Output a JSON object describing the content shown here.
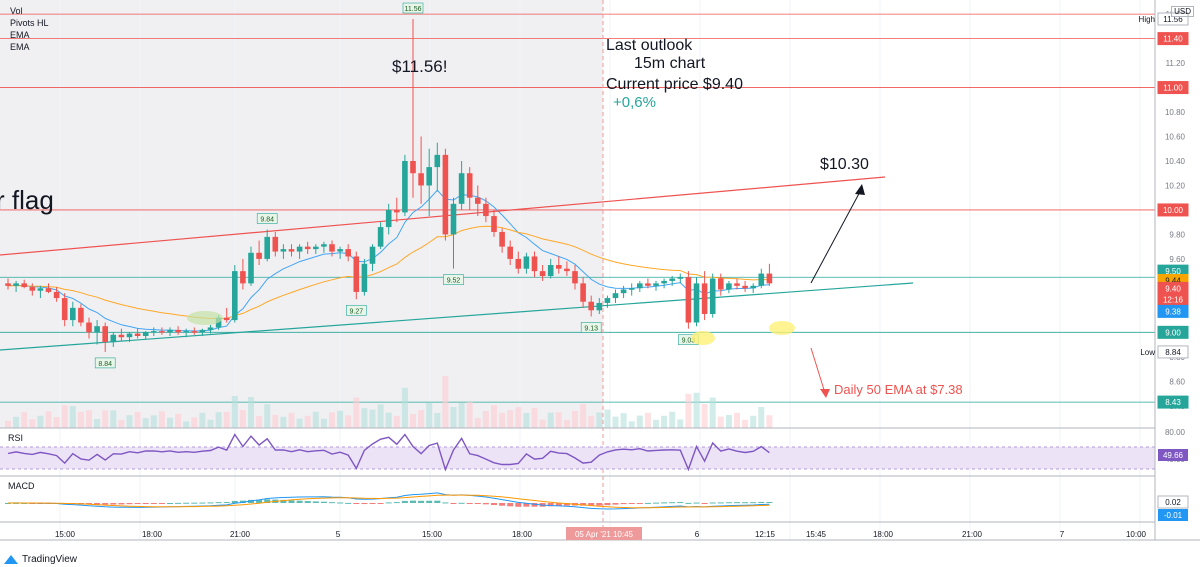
{
  "currency": "USD",
  "legend": [
    "Vol",
    "Pivots HL",
    "EMA",
    "EMA"
  ],
  "annotations": {
    "outlook": "Last outlook",
    "timeframe": "15m chart",
    "current_price": "Current price $9.40",
    "change": "+0,6%",
    "peak": "$11.56!",
    "target": "$10.30",
    "flag": "r flag",
    "ema_note": "Daily 50 EMA at $7.38"
  },
  "indicators": {
    "rsi_label": "RSI",
    "macd_label": "MACD",
    "rsi_value": "49.66",
    "macd_value_1": "0.02",
    "macd_value_2": "-0.01"
  },
  "price_axis_labels": [
    "11.60",
    "11.40",
    "11.20",
    "11.00",
    "10.80",
    "10.60",
    "10.40",
    "10.20",
    "10.00",
    "9.80",
    "9.60",
    "9.40",
    "9.20",
    "9.00",
    "8.80",
    "8.60",
    "8.40"
  ],
  "price_tags": [
    {
      "label": "11.56",
      "prefix": "High",
      "color": "#ffffff",
      "text": "#131722"
    },
    {
      "label": "11.40",
      "color": "#ef5350",
      "text": "#ffffff"
    },
    {
      "label": "11.00",
      "color": "#ef5350",
      "text": "#ffffff"
    },
    {
      "label": "10.00",
      "color": "#ef5350",
      "text": "#ffffff"
    },
    {
      "label": "9.50",
      "color": "#26a69a",
      "text": "#ffffff"
    },
    {
      "label": "9.44",
      "color": "#f7a600",
      "text": "#131722"
    },
    {
      "label": "9.40",
      "color": "#ef5350",
      "text": "#ffffff"
    },
    {
      "label": "12:16",
      "color": "#ef5350",
      "text": "#ffffff"
    },
    {
      "label": "9.38",
      "color": "#2196f3",
      "text": "#ffffff"
    },
    {
      "label": "9.00",
      "color": "#26a69a",
      "text": "#ffffff"
    },
    {
      "label": "8.84",
      "prefix": "Low",
      "color": "#ffffff",
      "text": "#131722"
    },
    {
      "label": "8.43",
      "color": "#26a69a",
      "text": "#ffffff"
    }
  ],
  "rsi_axis": [
    "80.00",
    "40.00"
  ],
  "time_axis": [
    "15:00",
    "18:00",
    "21:00",
    "5",
    "15:00",
    "18:00",
    "05 Apr '21 10:45",
    "6",
    "12:15",
    "15:45",
    "18:00",
    "21:00",
    "7",
    "10:00"
  ],
  "pivot_labels": [
    "11.56",
    "9.84",
    "9.27",
    "9.52",
    "8.84",
    "9.13",
    "9.03"
  ],
  "brand": "TradingView",
  "chart_data": {
    "type": "candlestick",
    "title": "",
    "price_range": [
      8.3,
      11.65
    ],
    "horizontal_levels": [
      11.6,
      11.4,
      11.0,
      10.0,
      9.45,
      9.0,
      8.43
    ],
    "last_price": 9.4,
    "high": 11.56,
    "low": 8.84,
    "target": 10.3,
    "candles": [
      [
        9.4,
        9.44,
        9.35,
        9.38
      ],
      [
        9.38,
        9.42,
        9.33,
        9.4
      ],
      [
        9.4,
        9.43,
        9.36,
        9.37
      ],
      [
        9.37,
        9.4,
        9.3,
        9.34
      ],
      [
        9.34,
        9.38,
        9.28,
        9.36
      ],
      [
        9.36,
        9.4,
        9.32,
        9.33
      ],
      [
        9.33,
        9.37,
        9.25,
        9.28
      ],
      [
        9.28,
        9.32,
        9.05,
        9.1
      ],
      [
        9.1,
        9.25,
        9.05,
        9.2
      ],
      [
        9.2,
        9.23,
        9.05,
        9.08
      ],
      [
        9.08,
        9.12,
        8.95,
        9.0
      ],
      [
        9.0,
        9.1,
        8.9,
        9.05
      ],
      [
        9.05,
        9.08,
        8.84,
        8.92
      ],
      [
        8.92,
        9.0,
        8.88,
        8.98
      ],
      [
        8.98,
        9.03,
        8.93,
        8.96
      ],
      [
        8.96,
        9.0,
        8.92,
        8.99
      ],
      [
        8.99,
        9.03,
        8.95,
        8.97
      ],
      [
        8.97,
        9.01,
        8.94,
        9.0
      ],
      [
        9.0,
        9.04,
        8.97,
        9.01
      ],
      [
        9.01,
        9.04,
        8.98,
        9.0
      ],
      [
        9.0,
        9.04,
        8.97,
        9.02
      ],
      [
        9.02,
        9.05,
        8.98,
        9.0
      ],
      [
        9.0,
        9.03,
        8.96,
        9.01
      ],
      [
        9.01,
        9.04,
        8.98,
        9.0
      ],
      [
        9.0,
        9.03,
        8.97,
        9.02
      ],
      [
        9.02,
        9.06,
        8.99,
        9.04
      ],
      [
        9.04,
        9.14,
        9.02,
        9.12
      ],
      [
        9.12,
        9.2,
        9.08,
        9.1
      ],
      [
        9.1,
        9.55,
        9.08,
        9.5
      ],
      [
        9.5,
        9.6,
        9.35,
        9.4
      ],
      [
        9.4,
        9.7,
        9.38,
        9.65
      ],
      [
        9.65,
        9.75,
        9.55,
        9.6
      ],
      [
        9.6,
        9.84,
        9.58,
        9.78
      ],
      [
        9.78,
        9.82,
        9.62,
        9.66
      ],
      [
        9.66,
        9.72,
        9.6,
        9.68
      ],
      [
        9.68,
        9.72,
        9.62,
        9.66
      ],
      [
        9.66,
        9.72,
        9.6,
        9.7
      ],
      [
        9.7,
        9.74,
        9.64,
        9.68
      ],
      [
        9.68,
        9.72,
        9.64,
        9.7
      ],
      [
        9.7,
        9.74,
        9.65,
        9.72
      ],
      [
        9.72,
        9.75,
        9.62,
        9.66
      ],
      [
        9.66,
        9.7,
        9.6,
        9.68
      ],
      [
        9.68,
        9.72,
        9.58,
        9.62
      ],
      [
        9.62,
        9.66,
        9.27,
        9.33
      ],
      [
        9.33,
        9.6,
        9.3,
        9.56
      ],
      [
        9.56,
        9.72,
        9.5,
        9.7
      ],
      [
        9.7,
        9.9,
        9.68,
        9.86
      ],
      [
        9.86,
        10.05,
        9.8,
        10.0
      ],
      [
        10.0,
        10.1,
        9.9,
        9.98
      ],
      [
        9.98,
        10.45,
        9.95,
        10.4
      ],
      [
        10.4,
        11.56,
        10.1,
        10.3
      ],
      [
        10.3,
        10.6,
        10.05,
        10.2
      ],
      [
        10.2,
        10.5,
        9.95,
        10.35
      ],
      [
        10.35,
        10.55,
        10.15,
        10.45
      ],
      [
        10.45,
        10.5,
        9.75,
        9.8
      ],
      [
        9.8,
        10.1,
        9.52,
        10.05
      ],
      [
        10.05,
        10.4,
        10.0,
        10.3
      ],
      [
        10.3,
        10.35,
        10.0,
        10.1
      ],
      [
        10.1,
        10.2,
        9.95,
        10.05
      ],
      [
        10.05,
        10.1,
        9.9,
        9.95
      ],
      [
        9.95,
        10.0,
        9.78,
        9.82
      ],
      [
        9.82,
        9.85,
        9.65,
        9.7
      ],
      [
        9.7,
        9.75,
        9.55,
        9.6
      ],
      [
        9.6,
        9.66,
        9.48,
        9.52
      ],
      [
        9.52,
        9.65,
        9.48,
        9.62
      ],
      [
        9.62,
        9.66,
        9.45,
        9.5
      ],
      [
        9.5,
        9.55,
        9.42,
        9.46
      ],
      [
        9.46,
        9.6,
        9.44,
        9.55
      ],
      [
        9.55,
        9.62,
        9.48,
        9.52
      ],
      [
        9.52,
        9.58,
        9.46,
        9.5
      ],
      [
        9.5,
        9.55,
        9.35,
        9.4
      ],
      [
        9.4,
        9.45,
        9.2,
        9.25
      ],
      [
        9.25,
        9.3,
        9.13,
        9.18
      ],
      [
        9.18,
        9.28,
        9.15,
        9.24
      ],
      [
        9.24,
        9.3,
        9.2,
        9.28
      ],
      [
        9.28,
        9.35,
        9.24,
        9.32
      ],
      [
        9.32,
        9.38,
        9.28,
        9.35
      ],
      [
        9.35,
        9.4,
        9.3,
        9.36
      ],
      [
        9.36,
        9.42,
        9.33,
        9.4
      ],
      [
        9.4,
        9.44,
        9.36,
        9.38
      ],
      [
        9.38,
        9.42,
        9.34,
        9.4
      ],
      [
        9.4,
        9.44,
        9.36,
        9.42
      ],
      [
        9.42,
        9.46,
        9.38,
        9.44
      ],
      [
        9.44,
        9.48,
        9.4,
        9.45
      ],
      [
        9.45,
        9.5,
        9.03,
        9.08
      ],
      [
        9.08,
        9.45,
        9.05,
        9.4
      ],
      [
        9.4,
        9.5,
        9.1,
        9.15
      ],
      [
        9.15,
        9.48,
        9.12,
        9.44
      ],
      [
        9.44,
        9.48,
        9.3,
        9.35
      ],
      [
        9.35,
        9.42,
        9.32,
        9.4
      ],
      [
        9.4,
        9.44,
        9.35,
        9.38
      ],
      [
        9.38,
        9.42,
        9.33,
        9.36
      ],
      [
        9.36,
        9.4,
        9.32,
        9.38
      ],
      [
        9.38,
        9.52,
        9.36,
        9.48
      ],
      [
        9.48,
        9.56,
        9.38,
        9.4
      ]
    ]
  }
}
